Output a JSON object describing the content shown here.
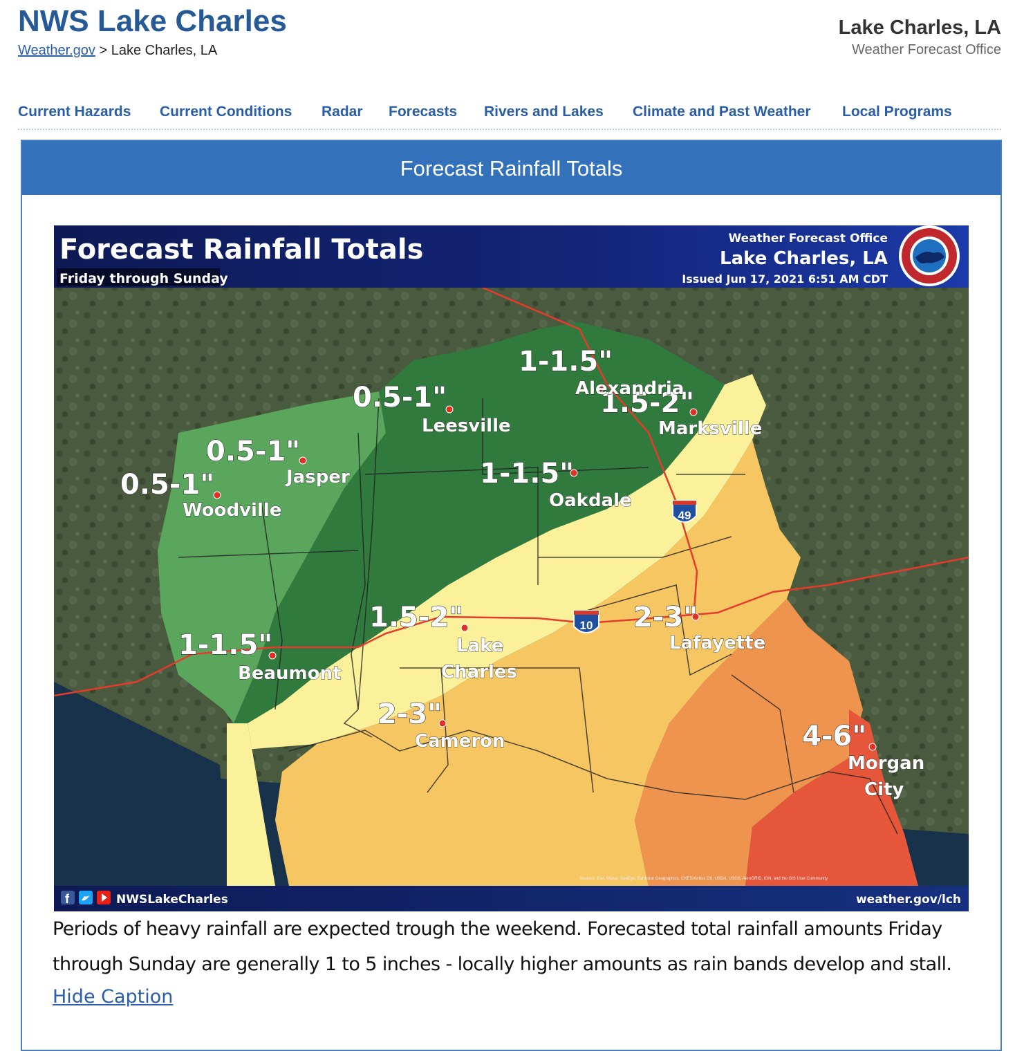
{
  "header": {
    "site_title": "NWS Lake Charles",
    "breadcrumb_link": "Weather.gov",
    "breadcrumb_sep": ">",
    "breadcrumb_current": "Lake Charles, LA",
    "office_name": "Lake Charles, LA",
    "office_type": "Weather Forecast Office"
  },
  "nav": {
    "items": [
      {
        "label": "Current Hazards"
      },
      {
        "label": "Current Conditions"
      },
      {
        "label": "Radar"
      },
      {
        "label": "Forecasts"
      },
      {
        "label": "Rivers and Lakes"
      },
      {
        "label": "Climate and Past Weather"
      },
      {
        "label": "Local Programs"
      }
    ]
  },
  "panel": {
    "title": "Forecast Rainfall Totals"
  },
  "graphic": {
    "title": "Forecast Rainfall Totals",
    "subtitle": "Friday through Sunday",
    "wfo_line1": "Weather Forecast Office",
    "wfo_line2": "Lake Charles, LA",
    "issued": "Issued Jun 17, 2021 6:51 AM CDT",
    "social_handle": "NWSLakeCharles",
    "website": "weather.gov/lch",
    "credits": "Sources: Esri, Maxar, GeoEye, Earthstar Geographics, CNES/Airbus DS, USDA, USGS, AeroGRID, IGN, and the GIS User Community",
    "interstates": [
      "49",
      "10"
    ],
    "zone_colors": {
      "light_green": "#5aa65c",
      "dark_green": "#2f7a3c",
      "light_yellow": "#fbf19b",
      "yellow_orange": "#f6c663",
      "orange": "#ef944f",
      "red_orange": "#e5563a"
    },
    "city_marker_color": "#e0302a",
    "amounts": [
      "0.5-1\"",
      "0.5-1\"",
      "0.5-1\"",
      "1-1.5\"",
      "1-1.5\"",
      "1.5-2\"",
      "1-1.5\"",
      "1.5-2\"",
      "2-3\"",
      "2-3\"",
      "4-6\""
    ],
    "cities": [
      "Woodville",
      "Jasper",
      "Leesville",
      "Alexandria",
      "Marksville",
      "Oakdale",
      "Beaumont",
      "Lake",
      "Charles",
      "Lafayette",
      "Cameron",
      "Morgan",
      "City"
    ]
  },
  "caption": {
    "text": "Periods of heavy rainfall are expected trough the weekend. Forecasted total rainfall amounts Friday through Sunday are generally 1 to 5 inches - locally higher amounts as rain bands develop and stall.",
    "hide_link": "Hide Caption"
  }
}
